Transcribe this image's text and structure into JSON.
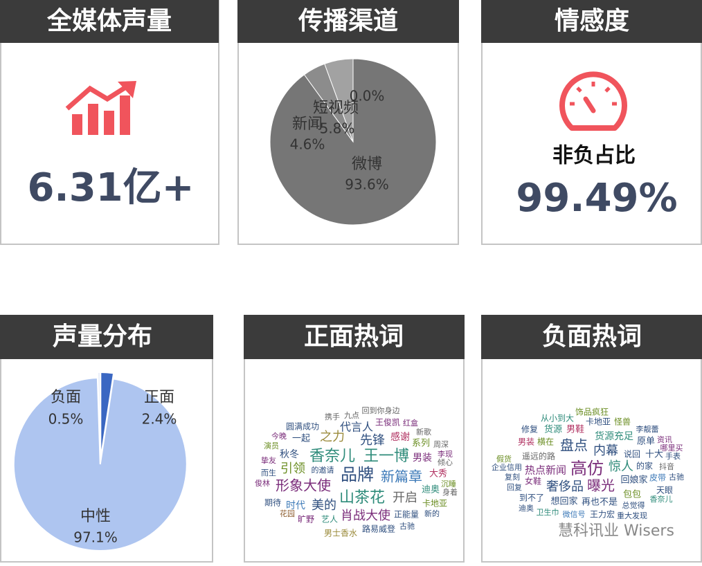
{
  "panels": {
    "volume": {
      "title": "全媒体声量",
      "value": "6.31亿+"
    },
    "sentiment": {
      "title": "情感度",
      "label": "非负占比",
      "value": "99.49%"
    },
    "positive_words": {
      "title": "正面热词",
      "words": [
        "携手",
        "九点",
        "回到你身边",
        "王俊凯",
        "红盒",
        "圆满成功",
        "代言人",
        "新歌",
        "今晚",
        "一起",
        "之力",
        "先锋",
        "感谢",
        "系列",
        "周深",
        "演员",
        "李现",
        "秋冬",
        "香奈儿",
        "王一博",
        "男装",
        "倾心",
        "挚友",
        "引领",
        "的邀请",
        "品牌",
        "新篇章",
        "大秀",
        "而生",
        "形象大使",
        "沉睡",
        "俊林",
        "迪奥",
        "身着",
        "山茶花",
        "开启",
        "期待",
        "时代",
        "美的",
        "卡地亚",
        "花园",
        "肖战大使",
        "正能量",
        "新的",
        "旷野",
        "艺人",
        "路易威登",
        "古驰",
        "男士香水"
      ]
    },
    "negative_words": {
      "title": "负面热词",
      "words": [
        "饰品疯狂",
        "从小到大",
        "卡地亚",
        "怪兽",
        "修复",
        "货源",
        "男鞋",
        "李靓蕾",
        "货源充足",
        "原单",
        "资讯",
        "男装",
        "横在",
        "盘点",
        "哪里买",
        "内幕",
        "说回",
        "十大",
        "手表",
        "遥远的路",
        "假货",
        "高仿",
        "惊人",
        "的家",
        "抖音",
        "企业信用",
        "热点新闻",
        "复刻",
        "皮带",
        "古驰",
        "女鞋",
        "奢侈品",
        "曝光",
        "回娘家",
        "回复",
        "天眼",
        "包包",
        "到不了",
        "想回家",
        "再也不是",
        "香奈儿",
        "总觉得",
        "迪奥",
        "卫生巾",
        "微信号",
        "王力宏",
        "重大发现"
      ]
    }
  },
  "chart_data": [
    {
      "type": "pie",
      "title": "传播渠道",
      "categories": [
        "微博",
        "新闻",
        "短视频",
        null
      ],
      "values": [
        93.6,
        4.6,
        5.8,
        0.0
      ],
      "value_labels": [
        "93.6%",
        "4.6%",
        "5.8%",
        "0.0%"
      ],
      "colors": [
        "#767676",
        "#8c8c8c",
        "#a2a2a2",
        "#b8b8b8"
      ]
    },
    {
      "type": "pie",
      "title": "声量分布",
      "categories": [
        "正面",
        "中性",
        "负面"
      ],
      "values": [
        2.4,
        97.1,
        0.5
      ],
      "value_labels": [
        "2.4%",
        "97.1%",
        "0.5%"
      ],
      "colors": [
        "#3a67c2",
        "#aec5f0",
        "#e8eef9"
      ]
    }
  ],
  "watermark": "慧科讯业 Wisers"
}
